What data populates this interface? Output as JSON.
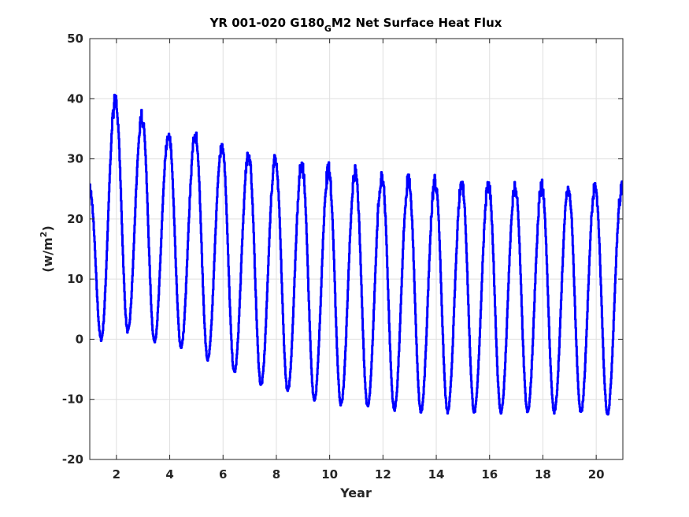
{
  "chart_data": {
    "type": "line",
    "title": {
      "main": "YR 001-020 G180",
      "subscript": "G",
      "rest": "M2 Net Surface Heat Flux"
    },
    "xlabel": "Year",
    "ylabel": {
      "base": "(w/m",
      "sup": "2",
      "close": ")"
    },
    "xlim": [
      1,
      21
    ],
    "ylim": [
      -20,
      50
    ],
    "xticks": [
      2,
      4,
      6,
      8,
      10,
      12,
      14,
      16,
      18,
      20
    ],
    "xtick_labels": [
      "2",
      "4",
      "6",
      "8",
      "10",
      "12",
      "14",
      "16",
      "18",
      "20"
    ],
    "yticks": [
      -20,
      -10,
      0,
      10,
      20,
      30,
      40,
      50
    ],
    "ytick_labels": [
      "-20",
      "-10",
      "0",
      "10",
      "20",
      "30",
      "40",
      "50"
    ],
    "grid": true,
    "line_color": "#0000ff",
    "annual_cycles": {
      "peak_year_offset": 0.95,
      "min_year_offset": 0.42,
      "peaks": [
        41.0,
        38.2,
        35.4,
        35.1,
        33.3,
        31.8,
        31.0,
        30.3,
        29.4,
        28.8,
        28.4,
        27.7,
        27.4,
        27.0,
        26.8,
        26.4,
        26.5,
        26.4,
        26.4,
        26.3
      ],
      "minima": [
        0.0,
        1.3,
        -0.3,
        -1.3,
        -3.4,
        -5.5,
        -7.6,
        -8.6,
        -10.0,
        -10.8,
        -11.2,
        -11.7,
        -12.1,
        -12.1,
        -12.1,
        -12.1,
        -12.1,
        -12.1,
        -12.2,
        -12.3
      ],
      "start_value": 25.5,
      "end_value": 26.2
    }
  }
}
